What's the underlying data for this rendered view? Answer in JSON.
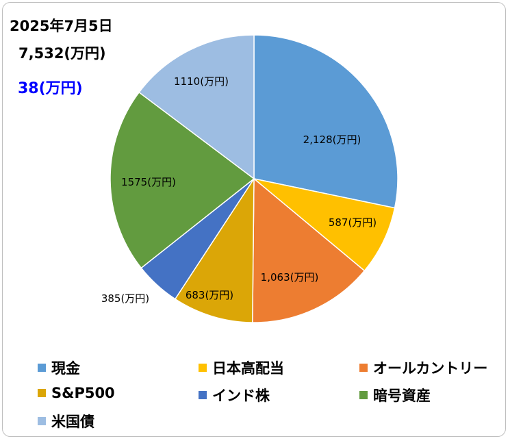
{
  "header": {
    "date": "2025年7月5日",
    "total": "7,532(万円)",
    "change": "38(万円)",
    "change_color": "#0000ff"
  },
  "chart_data": {
    "type": "pie",
    "start_angle_deg": 0,
    "direction": "clockwise",
    "slices": [
      {
        "name": "現金",
        "value": 2128,
        "label": "2,128(万円)",
        "color": "#5b9bd5"
      },
      {
        "name": "日本高配当",
        "value": 587,
        "label": "587(万円)",
        "color": "#ffc000"
      },
      {
        "name": "オールカントリー",
        "value": 1063,
        "label": "1,063(万円)",
        "color": "#ed7d31"
      },
      {
        "name": "S&P500",
        "value": 683,
        "label": "683(万円)",
        "color": "#dba607"
      },
      {
        "name": "インド株",
        "value": 385,
        "label": "385(万円)",
        "color": "#4472c4"
      },
      {
        "name": "暗号資産",
        "value": 1575,
        "label": "1575(万円)",
        "color": "#629b3f"
      },
      {
        "name": "米国債",
        "value": 1110,
        "label": "1110(万円)",
        "color": "#9dbde2"
      }
    ],
    "legend_position": "bottom"
  }
}
